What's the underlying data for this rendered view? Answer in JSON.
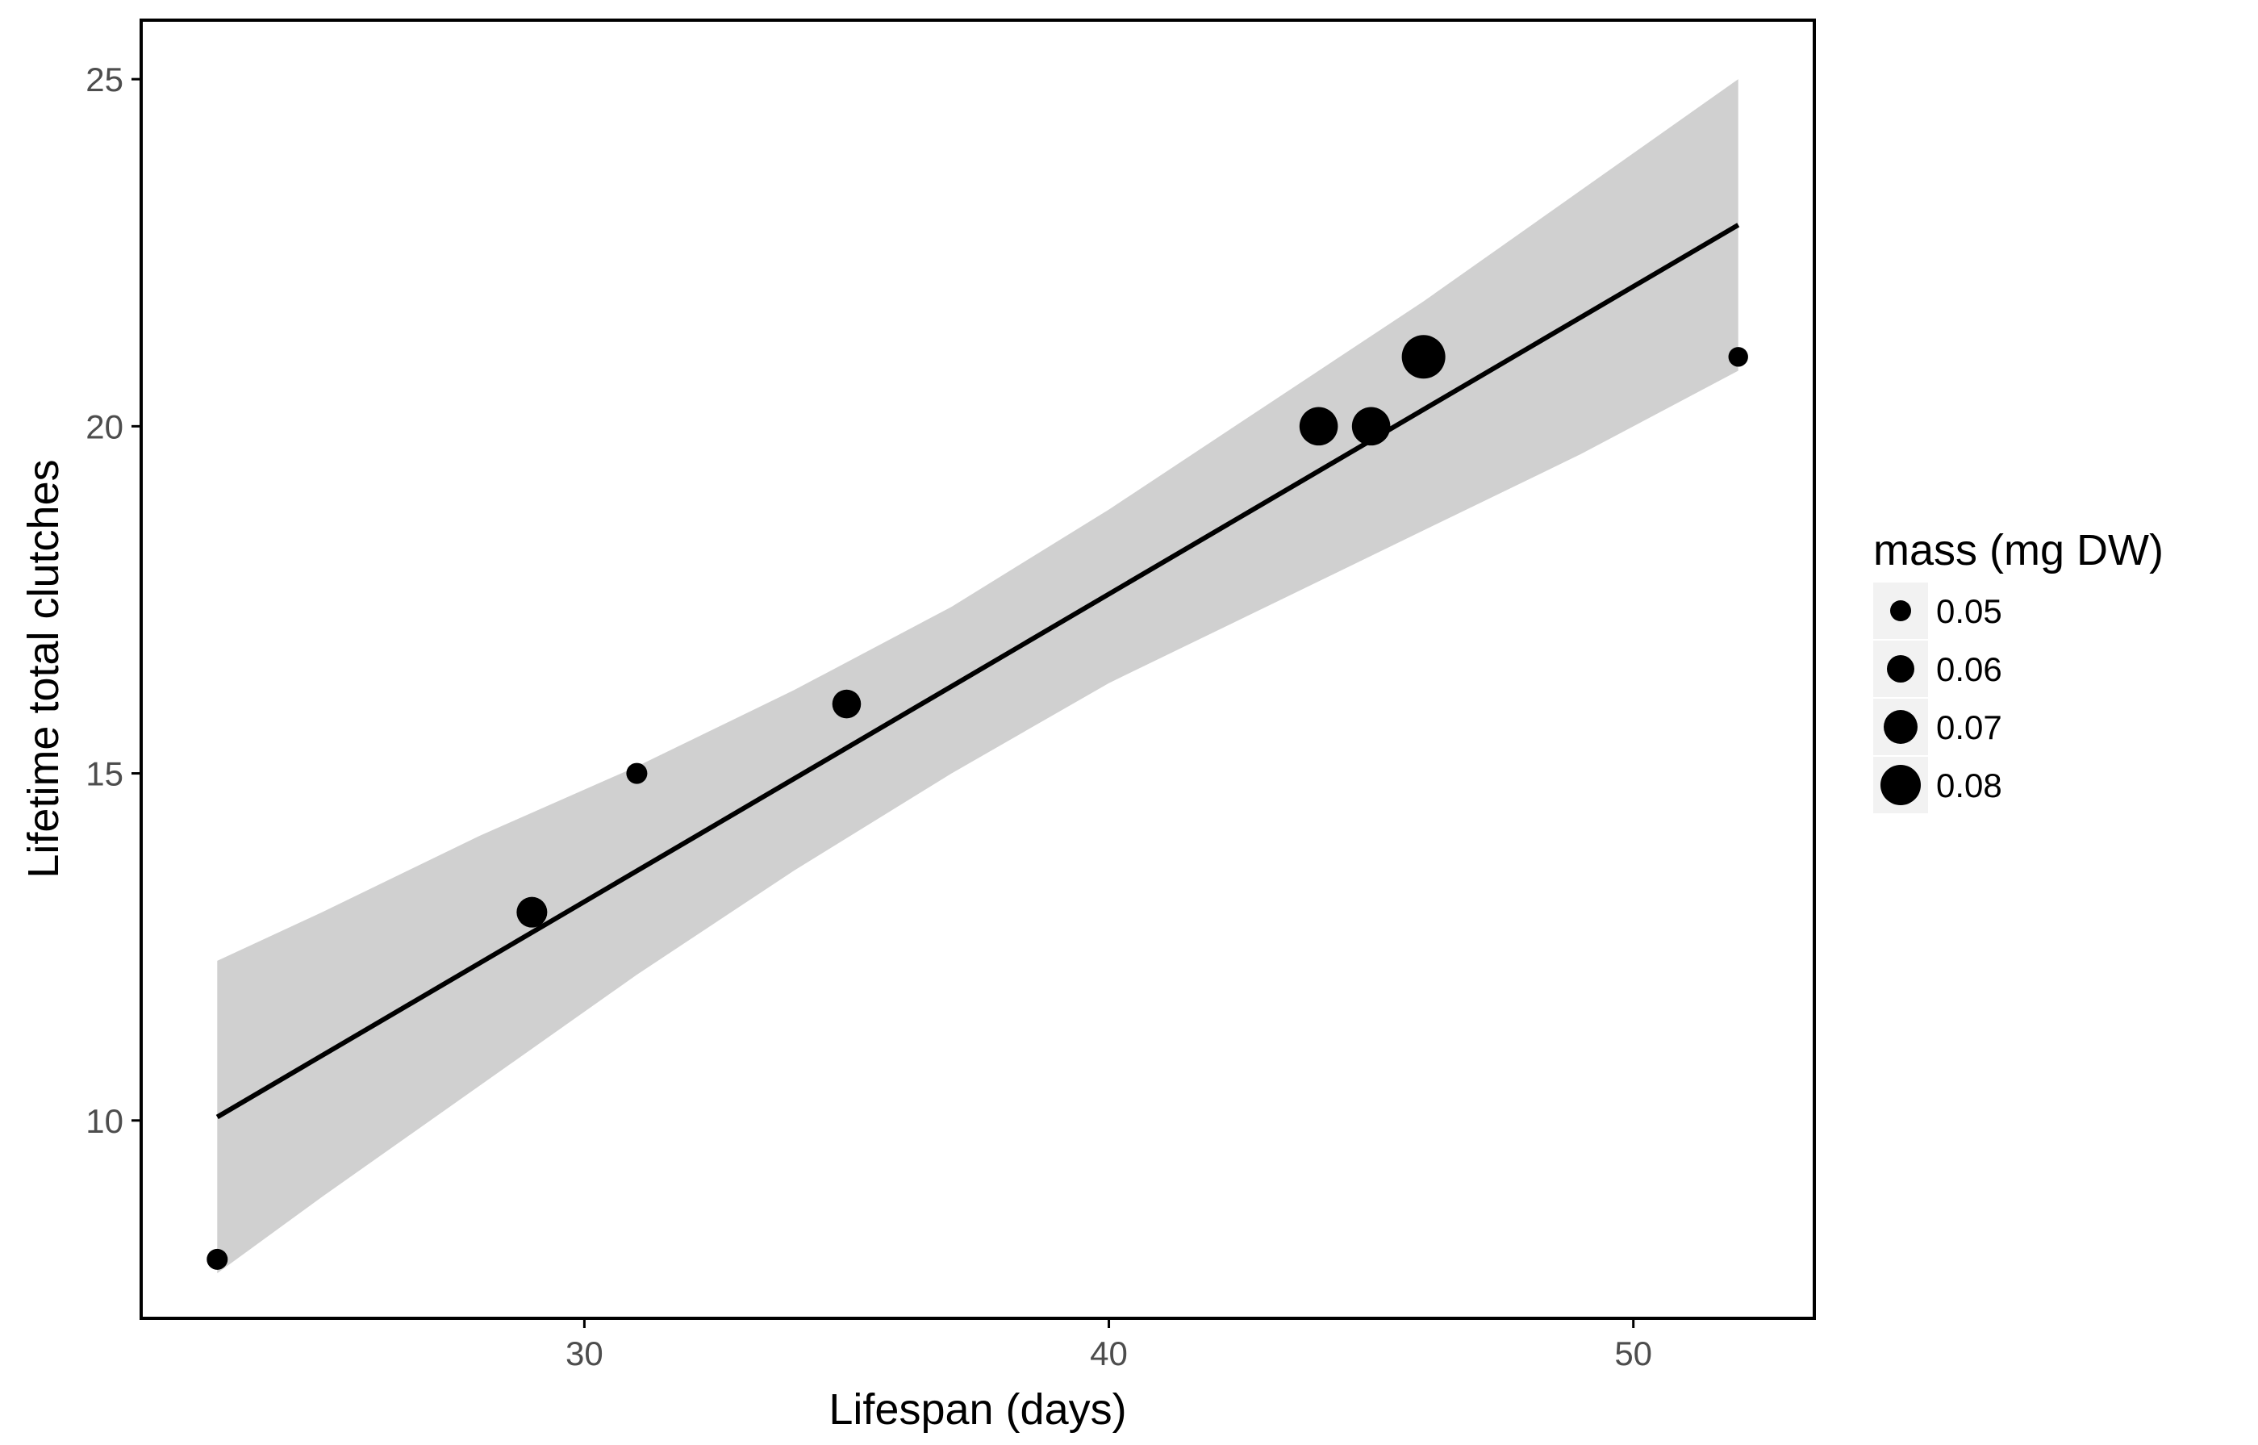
{
  "chart_data": {
    "type": "scatter",
    "title": "",
    "xlabel": "Lifespan (days)",
    "ylabel": "Lifetime total clutches",
    "xlim": [
      21.55,
      53.45
    ],
    "ylim": [
      7.15,
      25.85
    ],
    "x_ticks": [
      30,
      40,
      50
    ],
    "y_ticks": [
      10,
      15,
      20,
      25
    ],
    "grid": false,
    "points": [
      {
        "x": 23,
        "y": 8,
        "mass": 0.05
      },
      {
        "x": 29,
        "y": 13,
        "mass": 0.065
      },
      {
        "x": 31,
        "y": 15,
        "mass": 0.05
      },
      {
        "x": 35,
        "y": 16,
        "mass": 0.062
      },
      {
        "x": 44,
        "y": 20,
        "mass": 0.077
      },
      {
        "x": 45,
        "y": 20,
        "mass": 0.077
      },
      {
        "x": 46,
        "y": 21,
        "mass": 0.085
      },
      {
        "x": 52,
        "y": 21,
        "mass": 0.048
      }
    ],
    "fit_line": {
      "method": "linear",
      "x": [
        23,
        52
      ],
      "y": [
        10.05,
        22.9
      ]
    },
    "confidence_band": {
      "x": [
        23,
        25,
        28,
        31,
        34,
        37,
        40,
        43,
        46,
        49,
        52
      ],
      "lower": [
        7.8,
        8.9,
        10.5,
        12.1,
        13.6,
        15.0,
        16.3,
        17.4,
        18.5,
        19.6,
        20.8
      ],
      "upper": [
        12.3,
        13.0,
        14.1,
        15.1,
        16.2,
        17.4,
        18.8,
        20.3,
        21.8,
        23.4,
        25.0
      ]
    },
    "legend": {
      "title": "mass (mg DW)",
      "position": "right",
      "entries": [
        {
          "label": "0.05",
          "mass": 0.05
        },
        {
          "label": "0.06",
          "mass": 0.06
        },
        {
          "label": "0.07",
          "mass": 0.07
        },
        {
          "label": "0.08",
          "mass": 0.08
        }
      ]
    },
    "colors": {
      "points": "#000000",
      "line": "#000000",
      "band": "#d0d0d0",
      "axis": "#000000",
      "tick_label": "#4d4d4d",
      "legend_key_bg": "#f2f2f2"
    }
  }
}
